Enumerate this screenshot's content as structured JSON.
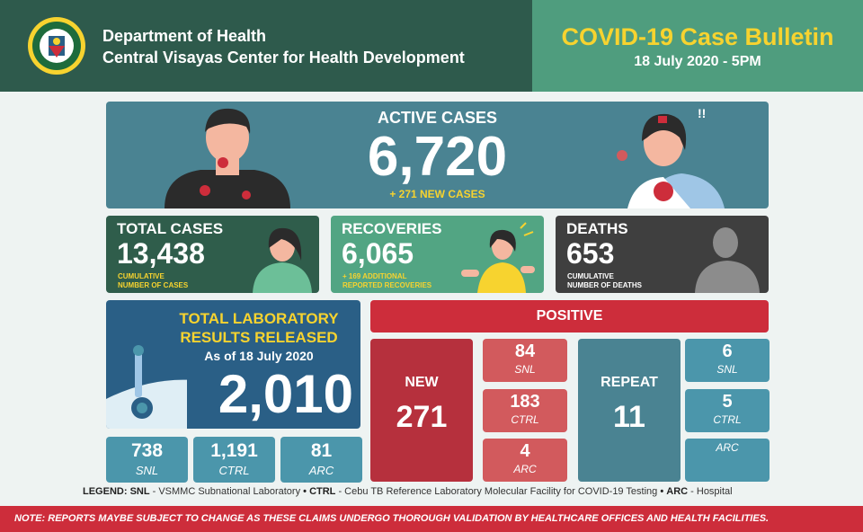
{
  "header": {
    "org_line1": "Department of Health",
    "org_line2": "Central Visayas Center for Health Development",
    "bulletin_title": "COVID-19 Case Bulletin",
    "bulletin_date": "18 July 2020 - 5PM",
    "seal_text": "REPUBLIC OF THE PHILIPPINES · DEPARTMENT OF HEALTH"
  },
  "active": {
    "label": "ACTIVE CASES",
    "value": "6,720",
    "sub": "+ 271 NEW CASES"
  },
  "total": {
    "label": "TOTAL CASES",
    "value": "13,438",
    "sub1": "CUMULATIVE",
    "sub2": "NUMBER OF CASES"
  },
  "recoveries": {
    "label": "RECOVERIES",
    "value": "6,065",
    "sub1": "+ 169 ADDITIONAL",
    "sub2": "REPORTED RECOVERIES"
  },
  "deaths": {
    "label": "DEATHS",
    "value": "653",
    "sub1": "CUMULATIVE",
    "sub2": "NUMBER OF DEATHS"
  },
  "lab": {
    "line1": "TOTAL LABORATORY",
    "line2": "RESULTS RELEASED",
    "asof": "As of 18 July 2020",
    "value": "2,010",
    "breakdown": [
      {
        "value": "738",
        "key": "SNL"
      },
      {
        "value": "1,191",
        "key": "CTRL"
      },
      {
        "value": "81",
        "key": "ARC"
      }
    ]
  },
  "positive": {
    "label": "POSITIVE",
    "new_label": "NEW",
    "new_value": "271",
    "new_breakdown": [
      {
        "value": "84",
        "key": "SNL"
      },
      {
        "value": "183",
        "key": "CTRL"
      },
      {
        "value": "4",
        "key": "ARC"
      }
    ],
    "repeat_label": "REPEAT",
    "repeat_value": "11",
    "repeat_breakdown": [
      {
        "value": "6",
        "key": "SNL"
      },
      {
        "value": "5",
        "key": "CTRL"
      },
      {
        "value": "",
        "key": "ARC"
      }
    ]
  },
  "legend": {
    "title": "LEGEND:",
    "snl_key": "SNL",
    "snl_text": " - VSMMC Subnational Laboratory",
    "ctrl_key": "CTRL",
    "ctrl_text": " - Cebu TB Reference Laboratory Molecular Facility for COVID-19 Testing",
    "arc_key": "ARC",
    "arc_text": " - Hospital"
  },
  "note": "NOTE:  REPORTS MAYBE SUBJECT TO CHANGE AS THESE CLAIMS UNDERGO THOROUGH VALIDATION BY HEALTHCARE OFFICES AND HEALTH FACILITIES.",
  "colors": {
    "header_dark": "#2e5a4c",
    "header_green": "#4f9d7e",
    "accent_yellow": "#f7d32f",
    "active_teal": "#4a8392",
    "positive_red": "#cd2d3b",
    "lab_blue": "#2a5f86"
  },
  "icons": [
    "doh-seal-icon",
    "sick-person-icon",
    "coughing-woman-icon",
    "virus-icon",
    "woman-icon",
    "cheering-woman-icon",
    "person-silhouette-icon",
    "test-swab-icon"
  ]
}
